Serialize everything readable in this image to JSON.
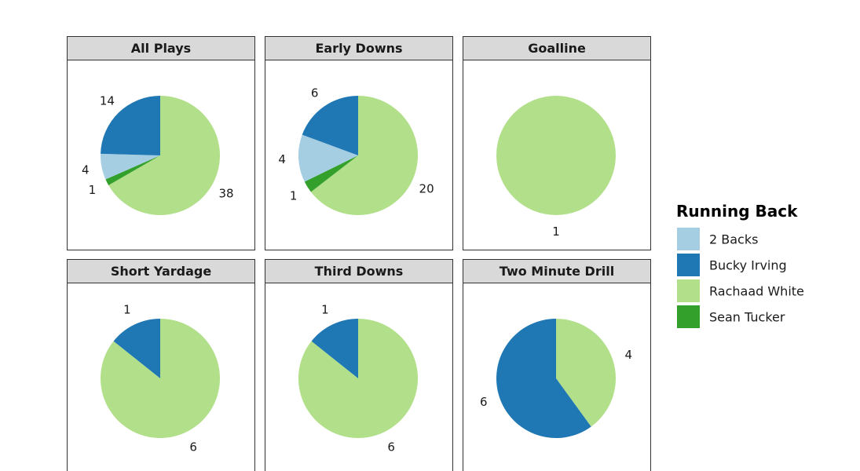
{
  "chart_data": {
    "type": "pie",
    "legend_title": "Running Back",
    "legend_position": "right",
    "categories": [
      "2 Backs",
      "Bucky Irving",
      "Rachaad White",
      "Sean Tucker"
    ],
    "colors": {
      "2 Backs": "#a6cee3",
      "Bucky Irving": "#1f78b4",
      "Rachaad White": "#b2df8a",
      "Sean Tucker": "#33a02c"
    },
    "facets": [
      {
        "title": "All Plays",
        "values": [
          {
            "name": "Rachaad White",
            "value": 38
          },
          {
            "name": "Sean Tucker",
            "value": 1
          },
          {
            "name": "2 Backs",
            "value": 4
          },
          {
            "name": "Bucky Irving",
            "value": 14
          }
        ]
      },
      {
        "title": "Early Downs",
        "values": [
          {
            "name": "Rachaad White",
            "value": 20
          },
          {
            "name": "Sean Tucker",
            "value": 1
          },
          {
            "name": "2 Backs",
            "value": 4
          },
          {
            "name": "Bucky Irving",
            "value": 6
          }
        ]
      },
      {
        "title": "Goalline",
        "values": [
          {
            "name": "Rachaad White",
            "value": 1
          }
        ]
      },
      {
        "title": "Short Yardage",
        "values": [
          {
            "name": "Rachaad White",
            "value": 6
          },
          {
            "name": "Bucky Irving",
            "value": 1
          }
        ]
      },
      {
        "title": "Third Downs",
        "values": [
          {
            "name": "Rachaad White",
            "value": 6
          },
          {
            "name": "Bucky Irving",
            "value": 1
          }
        ]
      },
      {
        "title": "Two Minute Drill",
        "values": [
          {
            "name": "Rachaad White",
            "value": 4
          },
          {
            "name": "Bucky Irving",
            "value": 6
          }
        ]
      }
    ]
  }
}
